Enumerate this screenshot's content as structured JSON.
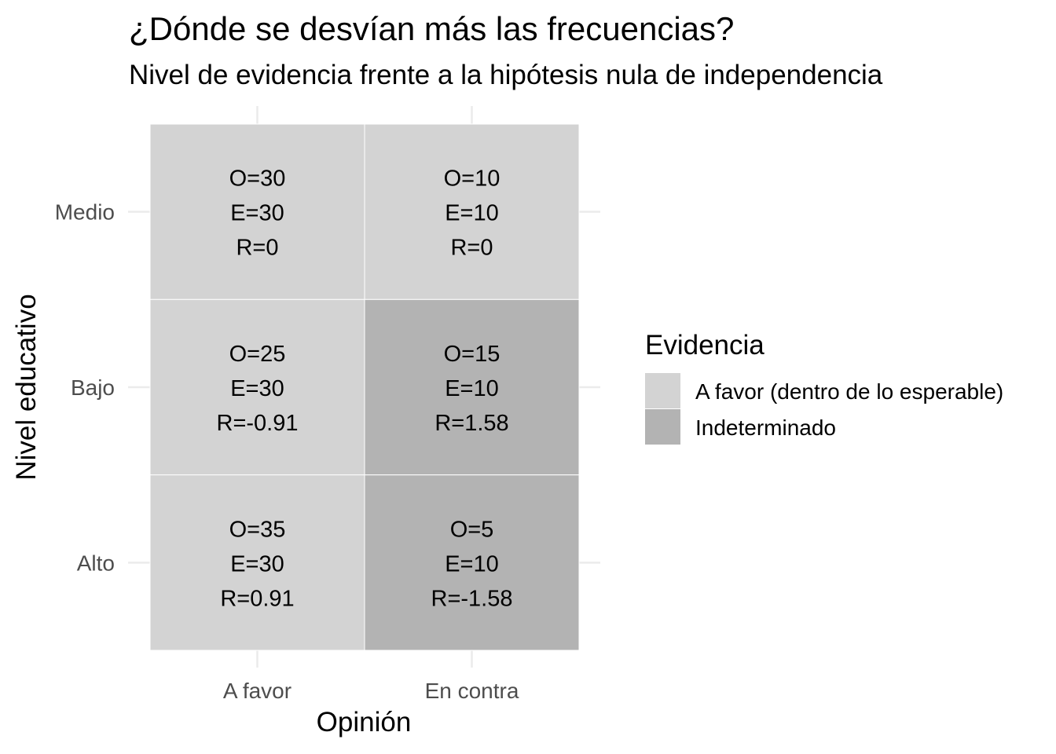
{
  "chart_data": {
    "type": "heatmap",
    "title": "¿Dónde se desvían más las frecuencias?",
    "subtitle": "Nivel de evidencia frente a la hipótesis nula de independencia",
    "xlabel": "Opinión",
    "ylabel": "Nivel educativo",
    "x_categories": [
      "A favor",
      "En contra"
    ],
    "y_categories": [
      "Alto",
      "Bajo",
      "Medio"
    ],
    "cells": [
      {
        "x": "A favor",
        "y": "Medio",
        "O": 30,
        "E": 30,
        "R": 0,
        "label_o": "O=30",
        "label_e": "E=30",
        "label_r": "R=0",
        "evidencia": "A favor (dentro de lo esperable)"
      },
      {
        "x": "En contra",
        "y": "Medio",
        "O": 10,
        "E": 10,
        "R": 0,
        "label_o": "O=10",
        "label_e": "E=10",
        "label_r": "R=0",
        "evidencia": "A favor (dentro de lo esperable)"
      },
      {
        "x": "A favor",
        "y": "Bajo",
        "O": 25,
        "E": 30,
        "R": -0.91,
        "label_o": "O=25",
        "label_e": "E=30",
        "label_r": "R=-0.91",
        "evidencia": "A favor (dentro de lo esperable)"
      },
      {
        "x": "En contra",
        "y": "Bajo",
        "O": 15,
        "E": 10,
        "R": 1.58,
        "label_o": "O=15",
        "label_e": "E=10",
        "label_r": "R=1.58",
        "evidencia": "Indeterminado"
      },
      {
        "x": "A favor",
        "y": "Alto",
        "O": 35,
        "E": 30,
        "R": 0.91,
        "label_o": "O=35",
        "label_e": "E=30",
        "label_r": "R=0.91",
        "evidencia": "A favor (dentro de lo esperable)"
      },
      {
        "x": "En contra",
        "y": "Alto",
        "O": 5,
        "E": 10,
        "R": -1.58,
        "label_o": "O=5",
        "label_e": "E=10",
        "label_r": "R=-1.58",
        "evidencia": "Indeterminado"
      }
    ],
    "legend": {
      "title": "Evidencia",
      "placement": "right",
      "items": [
        {
          "label": "A favor (dentro de lo esperable)",
          "color": "#d3d3d3"
        },
        {
          "label": "Indeterminado",
          "color": "#b3b3b3"
        }
      ]
    },
    "grid": true,
    "colors": {
      "gridline": "#ebebeb",
      "tick_text": "#4d4d4d",
      "cell_border": "#ffffff"
    }
  }
}
